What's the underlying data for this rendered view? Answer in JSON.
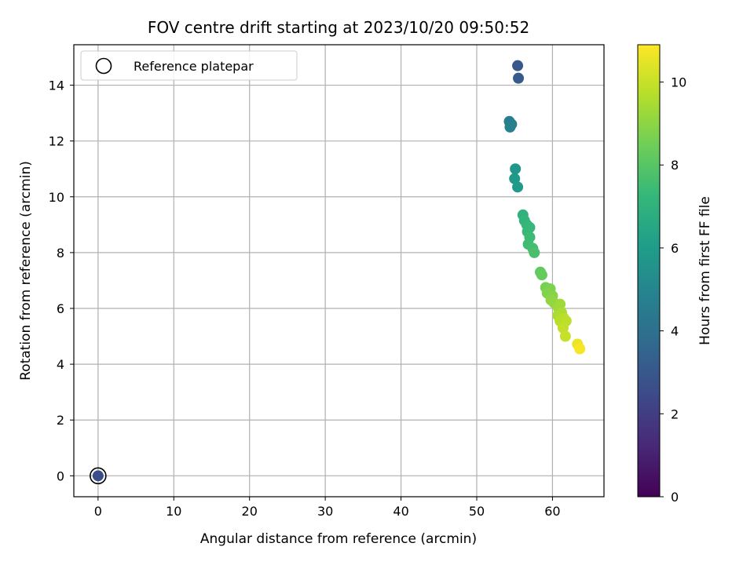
{
  "chart_data": {
    "type": "scatter",
    "title": "FOV centre drift starting at 2023/10/20 09:50:52",
    "xlabel": "Angular distance from reference (arcmin)",
    "ylabel": "Rotation from reference (arcmin)",
    "xlim": [
      -3.2,
      66.8
    ],
    "ylim": [
      -0.75,
      15.45
    ],
    "xticks": [
      0,
      10,
      20,
      30,
      40,
      50,
      60
    ],
    "yticks": [
      0,
      2,
      4,
      6,
      8,
      10,
      12,
      14
    ],
    "grid": true,
    "legend": {
      "position": "top-left",
      "entries": [
        "Reference platepar"
      ]
    },
    "reference_point": {
      "x": 0,
      "y": 0
    },
    "colorbar": {
      "label": "Hours from first FF file",
      "range": [
        0,
        10.9
      ],
      "ticks": [
        0,
        2,
        4,
        6,
        8,
        10
      ],
      "colormap": "viridis",
      "stops": [
        "#440154",
        "#482878",
        "#3e4989",
        "#31688e",
        "#26828e",
        "#1f9e89",
        "#35b779",
        "#6ece58",
        "#b5de2b",
        "#fde725"
      ]
    },
    "points": [
      {
        "x": 0.0,
        "y": 0.0,
        "h": 2.6
      },
      {
        "x": 55.4,
        "y": 14.7,
        "h": 3.0
      },
      {
        "x": 55.5,
        "y": 14.25,
        "h": 3.1
      },
      {
        "x": 54.3,
        "y": 12.7,
        "h": 4.6
      },
      {
        "x": 54.6,
        "y": 12.6,
        "h": 4.7
      },
      {
        "x": 54.4,
        "y": 12.5,
        "h": 4.8
      },
      {
        "x": 55.1,
        "y": 11.0,
        "h": 5.7
      },
      {
        "x": 55.0,
        "y": 10.65,
        "h": 5.8
      },
      {
        "x": 55.4,
        "y": 10.35,
        "h": 5.9
      },
      {
        "x": 56.1,
        "y": 9.35,
        "h": 7.0
      },
      {
        "x": 56.3,
        "y": 9.15,
        "h": 7.1
      },
      {
        "x": 56.6,
        "y": 9.0,
        "h": 7.2
      },
      {
        "x": 57.0,
        "y": 8.9,
        "h": 7.3
      },
      {
        "x": 56.7,
        "y": 8.75,
        "h": 7.3
      },
      {
        "x": 57.0,
        "y": 8.55,
        "h": 7.4
      },
      {
        "x": 56.8,
        "y": 8.3,
        "h": 7.5
      },
      {
        "x": 57.4,
        "y": 8.15,
        "h": 7.6
      },
      {
        "x": 57.6,
        "y": 8.0,
        "h": 7.7
      },
      {
        "x": 58.4,
        "y": 7.3,
        "h": 8.2
      },
      {
        "x": 58.6,
        "y": 7.2,
        "h": 8.3
      },
      {
        "x": 59.1,
        "y": 6.75,
        "h": 8.6
      },
      {
        "x": 59.7,
        "y": 6.7,
        "h": 8.7
      },
      {
        "x": 59.3,
        "y": 6.55,
        "h": 8.8
      },
      {
        "x": 60.0,
        "y": 6.45,
        "h": 8.9
      },
      {
        "x": 59.8,
        "y": 6.3,
        "h": 9.0
      },
      {
        "x": 60.2,
        "y": 6.2,
        "h": 9.1
      },
      {
        "x": 61.0,
        "y": 6.15,
        "h": 9.3
      },
      {
        "x": 60.8,
        "y": 6.0,
        "h": 9.3
      },
      {
        "x": 61.2,
        "y": 5.85,
        "h": 9.5
      },
      {
        "x": 60.7,
        "y": 5.75,
        "h": 9.5
      },
      {
        "x": 61.5,
        "y": 5.65,
        "h": 9.7
      },
      {
        "x": 61.0,
        "y": 5.55,
        "h": 9.7
      },
      {
        "x": 61.8,
        "y": 5.55,
        "h": 9.8
      },
      {
        "x": 61.4,
        "y": 5.3,
        "h": 9.9
      },
      {
        "x": 61.7,
        "y": 5.0,
        "h": 10.0
      },
      {
        "x": 63.3,
        "y": 4.72,
        "h": 10.6
      },
      {
        "x": 63.6,
        "y": 4.55,
        "h": 10.8
      }
    ]
  }
}
